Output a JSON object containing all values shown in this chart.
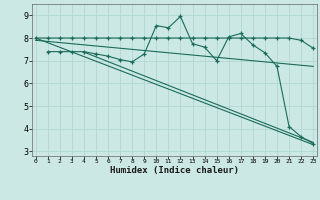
{
  "xlabel": "Humidex (Indice chaleur)",
  "bg_color": "#cce8e4",
  "grid_color": "#b0d8d0",
  "line_color": "#1a6b5a",
  "x_ticks": [
    0,
    1,
    2,
    3,
    4,
    5,
    6,
    7,
    8,
    9,
    10,
    11,
    12,
    13,
    14,
    15,
    16,
    17,
    18,
    19,
    20,
    21,
    22,
    23
  ],
  "y_ticks": [
    3,
    4,
    5,
    6,
    7,
    8,
    9
  ],
  "ylim": [
    2.8,
    9.5
  ],
  "xlim": [
    -0.3,
    23.3
  ],
  "series1_x": [
    0,
    1,
    2,
    3,
    4,
    5,
    6,
    7,
    8,
    9,
    10,
    11,
    12,
    13,
    14,
    15,
    16,
    17,
    18,
    19,
    20,
    21,
    22,
    23
  ],
  "series1_y": [
    8.0,
    8.0,
    8.0,
    8.0,
    8.0,
    8.0,
    8.0,
    8.0,
    8.0,
    8.0,
    8.0,
    8.0,
    8.0,
    8.0,
    8.0,
    8.0,
    8.0,
    8.0,
    8.0,
    8.0,
    8.0,
    8.0,
    7.9,
    7.55
  ],
  "series2_x": [
    1,
    2,
    3,
    4,
    5,
    6,
    7,
    8,
    9,
    10,
    11,
    12,
    13,
    14,
    15,
    16,
    17,
    18,
    19,
    20,
    21,
    22,
    23
  ],
  "series2_y": [
    7.4,
    7.4,
    7.4,
    7.4,
    7.3,
    7.2,
    7.05,
    6.95,
    7.3,
    8.55,
    8.45,
    8.95,
    7.75,
    7.6,
    7.0,
    8.05,
    8.2,
    7.7,
    7.35,
    6.75,
    4.1,
    3.65,
    3.35
  ],
  "series3_x": [
    0,
    23
  ],
  "series3_y": [
    8.0,
    3.3
  ],
  "series4_x": [
    0,
    23
  ],
  "series4_y": [
    7.9,
    6.75
  ],
  "series5_x": [
    4,
    23
  ],
  "series5_y": [
    7.38,
    3.4
  ]
}
